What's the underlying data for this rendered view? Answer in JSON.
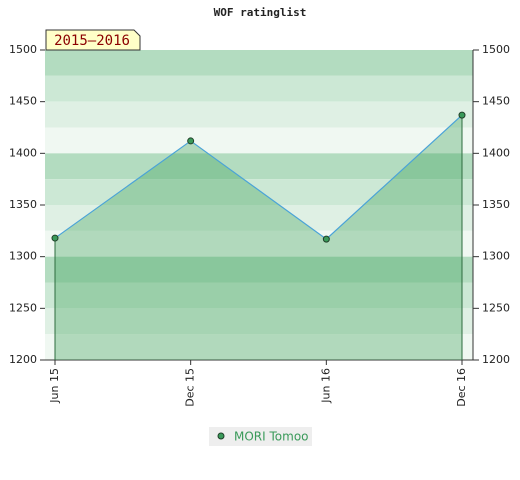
{
  "chart_data": {
    "type": "line",
    "title": "WOF ratinglist",
    "annotation": "2015–2016",
    "categories": [
      "Jun 15",
      "Dec 15",
      "Jun 16",
      "Dec 16"
    ],
    "series": [
      {
        "name": "MORI Tomoo",
        "color": "#3a9a5a",
        "values": [
          1318,
          1412,
          1317,
          1437
        ]
      }
    ],
    "ylim": [
      1200,
      1500
    ],
    "yticks": [
      1200,
      1250,
      1300,
      1350,
      1400,
      1450,
      1500
    ],
    "y2lim": [
      1200,
      1500
    ],
    "y2ticks": [
      1200,
      1250,
      1300,
      1350,
      1400,
      1450,
      1500
    ],
    "legend": "bottom"
  }
}
